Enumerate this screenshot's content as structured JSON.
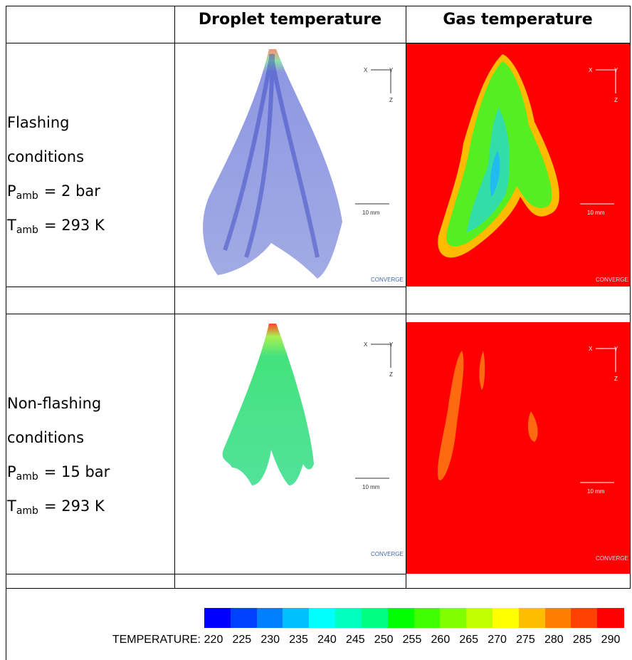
{
  "table": {
    "header": [
      "Droplet temperature",
      "Gas temperature"
    ],
    "rows": [
      {
        "label": [
          "Flashing",
          "conditions"
        ],
        "params": [
          {
            "symbol": "P",
            "sub": "amb",
            "value": "= 2 bar"
          },
          {
            "symbol": "T",
            "sub": "amb",
            "value": "= 293 K"
          }
        ]
      },
      {
        "label": [
          "Non-flashing",
          "conditions"
        ],
        "params": [
          {
            "symbol": "P",
            "sub": "amb",
            "value": "= 15 bar"
          },
          {
            "symbol": "T",
            "sub": "amb",
            "value": "= 293 K"
          }
        ]
      }
    ]
  },
  "figure_annotations": {
    "axis_x": "X",
    "axis_y": "Y",
    "axis_z": "Z",
    "scale": "10 mm",
    "logo": "CONVERGE"
  },
  "colorbar": {
    "label": "TEMPERATURE:",
    "ticks": [
      220,
      225,
      230,
      235,
      240,
      245,
      250,
      255,
      260,
      265,
      270,
      275,
      280,
      285,
      290
    ],
    "colors": [
      "#0000ff",
      "#0040ff",
      "#0080ff",
      "#00bfff",
      "#00ffff",
      "#00ffbf",
      "#00ff80",
      "#00ff00",
      "#40ff00",
      "#80ff00",
      "#bfff00",
      "#ffff00",
      "#ffbf00",
      "#ff8000",
      "#ff4000",
      "#ff0000"
    ]
  }
}
